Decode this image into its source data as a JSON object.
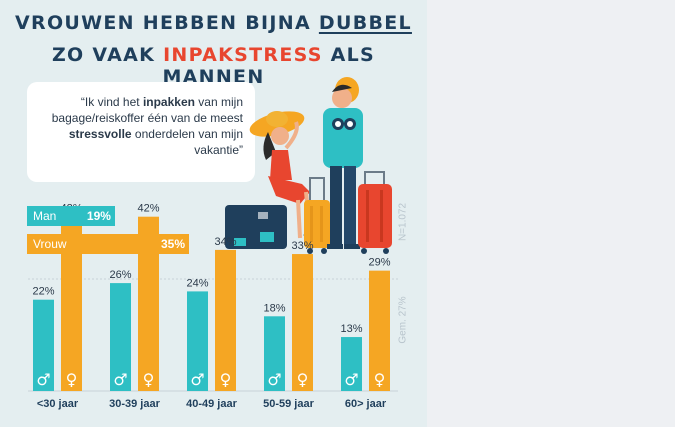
{
  "title": {
    "line1_pre": "VROUWEN HEBBEN BIJNA ",
    "line1_underlined": "DUBBEL",
    "line2_pre": "ZO VAAK ",
    "line2_red": "INPAKSTRESS",
    "line2_post": " ALS MANNEN"
  },
  "quote": {
    "p1": "“Ik vind het ",
    "b1": "inpakken",
    "p2": " van mijn bagage/reiskoffer één van de meest ",
    "b2": "stressvolle",
    "p3": " onderdelen van mijn vakantie”"
  },
  "sample_note": "N=1.072",
  "average_note": "Gem. 27%",
  "gender_symbols": {
    "male": "♂",
    "female": "♀"
  },
  "colors": {
    "male": "#2ebfc4",
    "female": "#f5a623",
    "title": "#1f3f5c",
    "accent": "#e8462f"
  },
  "chart_data": [
    {
      "type": "bar",
      "orientation": "horizontal",
      "categories": [
        "Man",
        "Vrouw"
      ],
      "values": [
        19,
        35
      ],
      "labels": [
        "19%",
        "35%"
      ],
      "xlim": [
        0,
        35
      ]
    },
    {
      "type": "bar",
      "categories": [
        "<30 jaar",
        "30-39 jaar",
        "40-49 jaar",
        "50-59 jaar",
        "60> jaar"
      ],
      "series": [
        {
          "name": "Man",
          "values": [
            22,
            26,
            24,
            18,
            13
          ]
        },
        {
          "name": "Vrouw",
          "values": [
            42,
            42,
            34,
            33,
            29
          ]
        }
      ],
      "average": 27,
      "ylim": [
        0,
        45
      ],
      "grid": false
    }
  ]
}
